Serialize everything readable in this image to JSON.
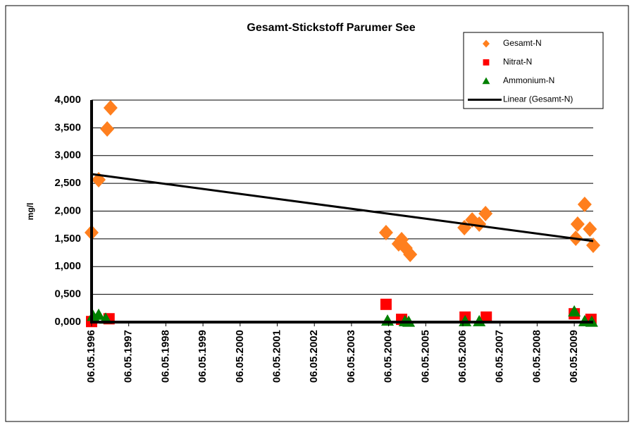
{
  "chart_data": {
    "type": "scatter",
    "title": "Gesamt-Stickstoff  Parumer See",
    "y_label": "mg/l",
    "xlim": [
      1996.34,
      2009.85
    ],
    "ylim": [
      0,
      4000
    ],
    "xticks": [
      {
        "value": 1996.34,
        "label": "06.05.1996"
      },
      {
        "value": 1997.34,
        "label": "06.05.1997"
      },
      {
        "value": 1998.34,
        "label": "06.05.1998"
      },
      {
        "value": 1999.34,
        "label": "06.05.1999"
      },
      {
        "value": 2000.34,
        "label": "06.05.2000"
      },
      {
        "value": 2001.34,
        "label": "06.05.2001"
      },
      {
        "value": 2002.34,
        "label": "06.05.2002"
      },
      {
        "value": 2003.34,
        "label": "06.05.2003"
      },
      {
        "value": 2004.34,
        "label": "06.05.2004"
      },
      {
        "value": 2005.34,
        "label": "06.05.2005"
      },
      {
        "value": 2006.34,
        "label": "06.05.2006"
      },
      {
        "value": 2007.34,
        "label": "06.05.2007"
      },
      {
        "value": 2008.34,
        "label": "06.05.2008"
      },
      {
        "value": 2009.34,
        "label": "06.05.2009"
      }
    ],
    "yticks": [
      {
        "value": 0,
        "label": "0,000"
      },
      {
        "value": 500,
        "label": "0,500"
      },
      {
        "value": 1000,
        "label": "1,000"
      },
      {
        "value": 1500,
        "label": "1,500"
      },
      {
        "value": 2000,
        "label": "2,000"
      },
      {
        "value": 2500,
        "label": "2,500"
      },
      {
        "value": 3000,
        "label": "3,000"
      },
      {
        "value": 3500,
        "label": "3,500"
      },
      {
        "value": 4000,
        "label": "4,000"
      }
    ],
    "grid": true,
    "legend": "top-right",
    "series": [
      {
        "name": "Gesamt-N",
        "color": "#ff7f1e",
        "marker": "diamond",
        "x": [
          1996.34,
          1996.53,
          1996.76,
          1996.85,
          2004.27,
          2004.61,
          2004.69,
          2004.8,
          2004.92,
          2006.38,
          2006.59,
          2006.78,
          2006.95,
          2009.38,
          2009.43,
          2009.62,
          2009.76,
          2009.85
        ],
        "values": [
          1613,
          2565,
          3479,
          3860,
          1613,
          1410,
          1486,
          1333,
          1219,
          1702,
          1841,
          1765,
          1956,
          1511,
          1765,
          2121,
          1676,
          1384
        ]
      },
      {
        "name": "Nitrat-N",
        "color": "#ff0000",
        "marker": "square",
        "x": [
          1996.34,
          1996.81,
          2004.27,
          2004.69,
          2006.4,
          2006.97,
          2009.34,
          2009.79
        ],
        "values": [
          10,
          60,
          320,
          50,
          90,
          90,
          150,
          50
        ]
      },
      {
        "name": "Ammonium-N",
        "color": "#008000",
        "marker": "triangle",
        "x": [
          1996.38,
          1996.53,
          1996.72,
          2004.31,
          2004.78,
          2004.88,
          2006.4,
          2006.78,
          2009.34,
          2009.62,
          2009.81
        ],
        "values": [
          110,
          130,
          60,
          25,
          15,
          5,
          15,
          15,
          190,
          15,
          5
        ]
      },
      {
        "name": "Linear (Gesamt-N)",
        "color": "#000000",
        "marker": "line",
        "x": [
          1996.34,
          2009.85
        ],
        "values": [
          2667,
          1460
        ]
      }
    ]
  }
}
